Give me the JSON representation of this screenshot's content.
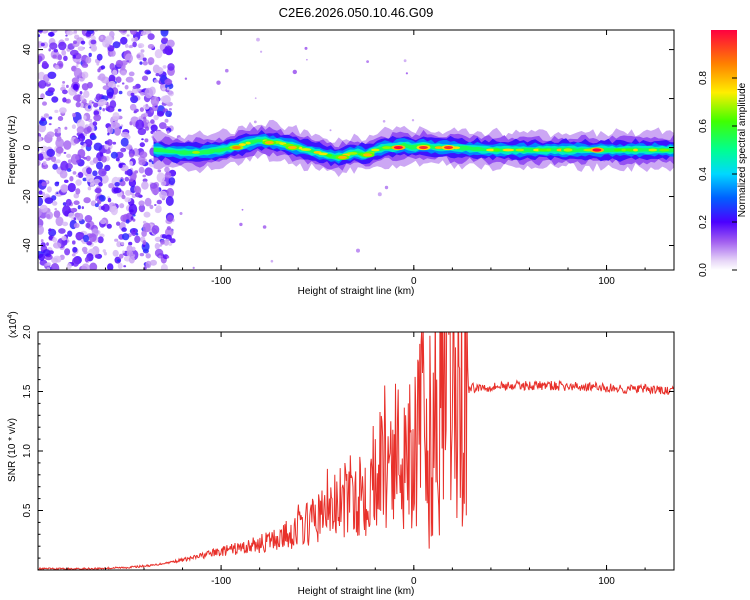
{
  "figure_title": "C2E6.2026.050.10.46.G09",
  "chart_data": [
    {
      "type": "heatmap",
      "title": "",
      "xlabel": "Height of straight line (km)",
      "ylabel": "Frequency (Hz)",
      "xlim": [
        -195,
        135
      ],
      "ylim": [
        -50,
        48
      ],
      "xticks": [
        -100,
        0,
        100
      ],
      "yticks": [
        -40,
        -20,
        0,
        20,
        40
      ],
      "xtick_labels": [
        "-100",
        "0",
        "100"
      ],
      "ytick_labels": [
        "-40",
        "-20",
        "0",
        "20",
        "40"
      ],
      "noise_region_x": [
        -195,
        -130
      ],
      "ridge": {
        "x": [
          -135,
          -120,
          -110,
          -100,
          -90,
          -80,
          -70,
          -60,
          -55,
          -50,
          -45,
          -40,
          -35,
          -30,
          -25,
          -20,
          -15,
          -10,
          -5,
          0,
          5,
          10,
          15,
          20,
          40,
          60,
          80,
          100,
          120,
          135
        ],
        "y": [
          -1,
          -2,
          -2,
          -1,
          1,
          3,
          2,
          0,
          -1,
          -2,
          -3,
          -4,
          -3,
          -2,
          -3,
          -1,
          0,
          0,
          1,
          0,
          1,
          0,
          0,
          0,
          -1,
          -1,
          -1,
          -1,
          -1,
          -1
        ]
      },
      "hotspots": [
        {
          "x": -92,
          "y": 0,
          "v": 0.85
        },
        {
          "x": -75,
          "y": 2,
          "v": 0.8
        },
        {
          "x": -63,
          "y": 0,
          "v": 0.8
        },
        {
          "x": -37,
          "y": -4,
          "v": 0.8
        },
        {
          "x": -24,
          "y": -3,
          "v": 0.8
        },
        {
          "x": -8,
          "y": 0,
          "v": 1.0
        },
        {
          "x": 5,
          "y": 0,
          "v": 0.95
        },
        {
          "x": 18,
          "y": 0,
          "v": 0.95
        },
        {
          "x": 80,
          "y": -1,
          "v": 0.7
        },
        {
          "x": 95,
          "y": -1,
          "v": 1.0
        }
      ],
      "colorbar": {
        "label": "Normalized spectral amplitude",
        "range": [
          0,
          1
        ],
        "ticks": [
          0.0,
          0.2,
          0.4,
          0.6,
          0.8
        ],
        "tick_labels": [
          "0.0",
          "0.2",
          "0.4",
          "0.6",
          "0.8"
        ]
      }
    },
    {
      "type": "line",
      "title": "",
      "xlabel": "Height of straight line (km)",
      "ylabel": "SNR (10 * v/v)",
      "yscale_label": "(x10",
      "yscale_exp": "4",
      "xlim": [
        -195,
        135
      ],
      "ylim": [
        0,
        2.0
      ],
      "xticks": [
        -100,
        0,
        100
      ],
      "yticks": [
        0.5,
        1.0,
        1.5,
        2.0
      ],
      "xtick_labels": [
        "-100",
        "0",
        "100"
      ],
      "ytick_labels": [
        "0.5",
        "1.0",
        "1.5",
        "2.0"
      ],
      "series": [
        {
          "name": "SNR",
          "color": "#e8302a",
          "x": [
            -195,
            -170,
            -150,
            -135,
            -125,
            -115,
            -105,
            -95,
            -85,
            -75,
            -65,
            -58,
            -50,
            -42,
            -35,
            -28,
            -20,
            -14,
            -8,
            -3,
            2,
            6,
            10,
            15,
            20,
            25,
            30,
            40,
            50,
            60,
            70,
            80,
            90,
            100,
            110,
            120,
            135
          ],
          "y": [
            0.01,
            0.01,
            0.02,
            0.04,
            0.07,
            0.1,
            0.14,
            0.17,
            0.2,
            0.24,
            0.3,
            0.36,
            0.44,
            0.52,
            0.58,
            0.68,
            0.8,
            0.9,
            0.97,
            1.05,
            1.12,
            1.2,
            1.3,
            1.38,
            1.45,
            1.5,
            1.53,
            1.54,
            1.55,
            1.55,
            1.55,
            1.54,
            1.54,
            1.53,
            1.52,
            1.52,
            1.5
          ],
          "peaks": [
            {
              "x": -60,
              "y": 0.55
            },
            {
              "x": -45,
              "y": 0.85
            },
            {
              "x": -35,
              "y": 0.75
            },
            {
              "x": -28,
              "y": 0.95
            },
            {
              "x": -20,
              "y": 1.1
            },
            {
              "x": -15,
              "y": 1.55
            },
            {
              "x": -12,
              "y": 1.25
            },
            {
              "x": -3,
              "y": 1.4
            },
            {
              "x": 5,
              "y": 2.0
            },
            {
              "x": 8,
              "y": 0.18
            },
            {
              "x": 12,
              "y": 1.6
            }
          ]
        }
      ]
    }
  ]
}
